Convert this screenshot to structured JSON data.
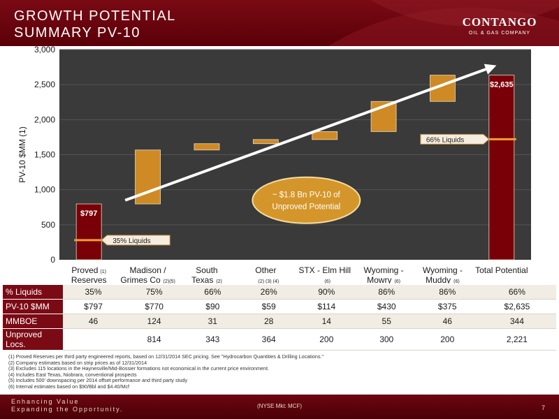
{
  "header": {
    "title_line1": "GROWTH POTENTIAL",
    "title_line2": "SUMMARY PV-10",
    "logo_name": "CONTANGO",
    "logo_sub": "OIL & GAS COMPANY"
  },
  "chart_data": {
    "type": "waterfall",
    "ylabel": "PV-10 $MM (1)",
    "ylim": [
      0,
      3000
    ],
    "yticks": [
      "0",
      "500",
      "1,000",
      "1,500",
      "2,000",
      "2,500",
      "3,000"
    ],
    "ytick_values": [
      0,
      500,
      1000,
      1500,
      2000,
      2500,
      3000
    ],
    "colors": {
      "anchor_bar": "#7a0008",
      "step_bar": "#cf8a26",
      "plot_bg": "#3a3a3a",
      "liquids_line": "#f0a030"
    },
    "categories": [
      {
        "line1": "Proved",
        "note1": "(1)",
        "line2": "Reserves",
        "note2": ""
      },
      {
        "line1": "Madison /",
        "note1": "",
        "line2": "Grimes Co",
        "note2": "(2)(5)"
      },
      {
        "line1": "South",
        "note1": "",
        "line2": "Texas",
        "note2": "(2)"
      },
      {
        "line1": "Other",
        "note1": "",
        "line2": "",
        "note2": "(2) (3) (4)"
      },
      {
        "line1": "STX - Elm Hill",
        "note1": "",
        "line2": "",
        "note2": "(6)"
      },
      {
        "line1": "Wyoming -",
        "note1": "",
        "line2": "Mowry",
        "note2": "(6)"
      },
      {
        "line1": "Wyoming -",
        "note1": "",
        "line2": "Muddy",
        "note2": "(6)"
      },
      {
        "line1": "Total Potential",
        "note1": "",
        "line2": "",
        "note2": ""
      }
    ],
    "bars": [
      {
        "kind": "anchor",
        "base": 0,
        "value": 797,
        "label": "$797"
      },
      {
        "kind": "step",
        "base": 797,
        "value": 770,
        "label": ""
      },
      {
        "kind": "step",
        "base": 1567,
        "value": 90,
        "label": ""
      },
      {
        "kind": "step",
        "base": 1657,
        "value": 59,
        "label": ""
      },
      {
        "kind": "step",
        "base": 1716,
        "value": 114,
        "label": ""
      },
      {
        "kind": "step",
        "base": 1830,
        "value": 430,
        "label": ""
      },
      {
        "kind": "step",
        "base": 2260,
        "value": 375,
        "label": ""
      },
      {
        "kind": "anchor",
        "base": 0,
        "value": 2635,
        "label": "$2,635"
      }
    ],
    "liquids_markers": [
      {
        "bar": 0,
        "value": 280,
        "label": "35% Liquids"
      },
      {
        "bar": 7,
        "value": 1720,
        "label": "66% Liquids"
      }
    ],
    "annotation": {
      "line1": "~ $1.8 Bn PV-10 of",
      "line2": "Unproved  Potential"
    }
  },
  "table": {
    "rows": [
      {
        "header": "% Liquids",
        "values": [
          "35%",
          "75%",
          "66%",
          "26%",
          "90%",
          "86%",
          "86%",
          "66%"
        ]
      },
      {
        "header": "PV-10 $MM",
        "values": [
          "$797",
          "$770",
          "$90",
          "$59",
          "$114",
          "$430",
          "$375",
          "$2,635"
        ]
      },
      {
        "header": "MMBOE",
        "values": [
          "46",
          "124",
          "31",
          "28",
          "14",
          "55",
          "46",
          "344"
        ]
      },
      {
        "header": "Unproved Locs.",
        "values": [
          "",
          "814",
          "343",
          "364",
          "200",
          "300",
          "200",
          "2,221"
        ]
      }
    ]
  },
  "notes": [
    "(1)   Proved Reserves per third party engineered reports, based on 12/31/2014 SEC pricing. See \"Hydrocarbon Quantities & Drilling Locations.\"",
    "(2)   Company estimates based on strip prices as of 12/31/2014",
    "(3)   Excludes 115 locations in the Haynesville/Mid-Bossier formations not economical in the current price environment.",
    "(4)   Includes East Texas, Niobrara, conventional prospects",
    "(5)   Includes 500' downspacing per 2014 offset performance and third party study",
    "(6)   Internal estimates based on $90/Bbl and $4.40/Mcf"
  ],
  "footer": {
    "tagline1": "Enhancing Value",
    "tagline2": "Expanding the Opportunity.",
    "ticker": "(NYSE Mkt: MCF)",
    "page": "7"
  }
}
